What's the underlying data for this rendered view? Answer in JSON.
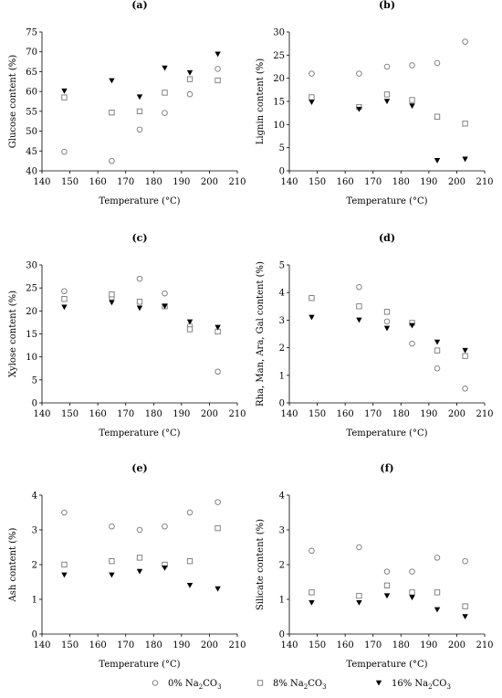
{
  "legend": {
    "series": [
      {
        "name_prefix": "0% Na",
        "sub": "2",
        "name_suffix": "CO",
        "sub2": "3",
        "marker": "circle"
      },
      {
        "name_prefix": "8% Na",
        "sub": "2",
        "name_suffix": "CO",
        "sub2": "3",
        "marker": "square"
      },
      {
        "name_prefix": "16% Na",
        "sub": "2",
        "name_suffix": "CO",
        "sub2": "3",
        "marker": "triangle-down"
      }
    ],
    "placement": "bottom-center"
  },
  "chart_data": [
    {
      "type": "scatter",
      "panel": "(a)",
      "xlabel": "Temperature (°C)",
      "ylabel": "Glucose content (%)",
      "xlim": [
        140,
        210
      ],
      "xticks": [
        140,
        150,
        160,
        170,
        180,
        190,
        200,
        210
      ],
      "ylim": [
        40,
        75
      ],
      "yticks": [
        40,
        45,
        50,
        55,
        60,
        65,
        70,
        75
      ],
      "x": [
        148,
        165,
        175,
        184,
        193,
        203
      ],
      "series": [
        {
          "marker": "circle",
          "values": [
            44.8,
            42.5,
            50.4,
            54.6,
            59.3,
            65.7
          ]
        },
        {
          "marker": "square",
          "values": [
            58.5,
            54.7,
            55.0,
            59.7,
            63.1,
            62.8
          ]
        },
        {
          "marker": "triangle-down",
          "values": [
            60.1,
            62.7,
            58.6,
            65.9,
            64.7,
            69.4
          ]
        }
      ]
    },
    {
      "type": "scatter",
      "panel": "(b)",
      "xlabel": "Temperature (°C)",
      "ylabel": "Lignin content (%)",
      "xlim": [
        140,
        210
      ],
      "xticks": [
        140,
        150,
        160,
        170,
        180,
        190,
        200,
        210
      ],
      "ylim": [
        0,
        30
      ],
      "yticks": [
        0,
        5,
        10,
        15,
        20,
        25,
        30
      ],
      "x": [
        148,
        165,
        175,
        184,
        193,
        203
      ],
      "series": [
        {
          "marker": "circle",
          "values": [
            21.0,
            21.0,
            22.5,
            22.8,
            23.3,
            27.9
          ]
        },
        {
          "marker": "square",
          "values": [
            15.9,
            13.8,
            16.5,
            15.3,
            11.7,
            10.2
          ]
        },
        {
          "marker": "triangle-down",
          "values": [
            14.8,
            13.3,
            15.0,
            14.0,
            2.2,
            2.5
          ]
        }
      ]
    },
    {
      "type": "scatter",
      "panel": "(c)",
      "xlabel": "Temperature (°C)",
      "ylabel": "Xylose content (%)",
      "xlim": [
        140,
        210
      ],
      "xticks": [
        140,
        150,
        160,
        170,
        180,
        190,
        200,
        210
      ],
      "ylim": [
        0,
        30
      ],
      "yticks": [
        0,
        5,
        10,
        15,
        20,
        25,
        30
      ],
      "x": [
        148,
        165,
        175,
        184,
        193,
        203
      ],
      "series": [
        {
          "marker": "circle",
          "values": [
            24.3,
            22.9,
            27.0,
            23.8,
            16.8,
            6.8
          ]
        },
        {
          "marker": "square",
          "values": [
            22.6,
            23.6,
            22.0,
            21.0,
            16.0,
            15.5
          ]
        },
        {
          "marker": "triangle-down",
          "values": [
            20.8,
            21.8,
            20.6,
            21.0,
            17.6,
            16.4
          ]
        }
      ]
    },
    {
      "type": "scatter",
      "panel": "(d)",
      "xlabel": "Temperature (°C)",
      "ylabel": "Rha, Man, Ara, Gal content (%)",
      "xlim": [
        140,
        210
      ],
      "xticks": [
        140,
        150,
        160,
        170,
        180,
        190,
        200,
        210
      ],
      "ylim": [
        0,
        5
      ],
      "yticks": [
        0,
        1,
        2,
        3,
        4,
        5
      ],
      "x": [
        148,
        165,
        175,
        184,
        193,
        203
      ],
      "series": [
        {
          "marker": "circle",
          "values": [
            3.8,
            4.2,
            2.95,
            2.15,
            1.25,
            0.52
          ]
        },
        {
          "marker": "square",
          "values": [
            3.8,
            3.5,
            3.3,
            2.9,
            1.9,
            1.7
          ]
        },
        {
          "marker": "triangle-down",
          "values": [
            3.1,
            3.0,
            2.7,
            2.8,
            2.2,
            1.9
          ]
        }
      ]
    },
    {
      "type": "scatter",
      "panel": "(e)",
      "xlabel": "Temperature (°C)",
      "ylabel": "Ash content (%)",
      "xlim": [
        140,
        210
      ],
      "xticks": [
        140,
        150,
        160,
        170,
        180,
        190,
        200,
        210
      ],
      "ylim": [
        0,
        4
      ],
      "yticks": [
        0,
        1,
        2,
        3,
        4
      ],
      "x": [
        148,
        165,
        175,
        184,
        193,
        203
      ],
      "series": [
        {
          "marker": "circle",
          "values": [
            3.5,
            3.1,
            3.0,
            3.1,
            3.5,
            3.8
          ]
        },
        {
          "marker": "square",
          "values": [
            2.0,
            2.1,
            2.2,
            2.0,
            2.1,
            3.05
          ]
        },
        {
          "marker": "triangle-down",
          "values": [
            1.7,
            1.7,
            1.8,
            1.9,
            1.4,
            1.3
          ]
        }
      ]
    },
    {
      "type": "scatter",
      "panel": "(f)",
      "xlabel": "Temperature (°C)",
      "ylabel": "Silicate content (%)",
      "xlim": [
        140,
        210
      ],
      "xticks": [
        140,
        150,
        160,
        170,
        180,
        190,
        200,
        210
      ],
      "ylim": [
        0,
        4
      ],
      "yticks": [
        0,
        1,
        2,
        3,
        4
      ],
      "x": [
        148,
        165,
        175,
        184,
        193,
        203
      ],
      "series": [
        {
          "marker": "circle",
          "values": [
            2.4,
            2.5,
            1.8,
            1.8,
            2.2,
            2.1
          ]
        },
        {
          "marker": "square",
          "values": [
            1.2,
            1.1,
            1.4,
            1.2,
            1.2,
            0.8
          ]
        },
        {
          "marker": "triangle-down",
          "values": [
            0.9,
            0.9,
            1.1,
            1.05,
            0.7,
            0.5
          ]
        }
      ]
    }
  ]
}
